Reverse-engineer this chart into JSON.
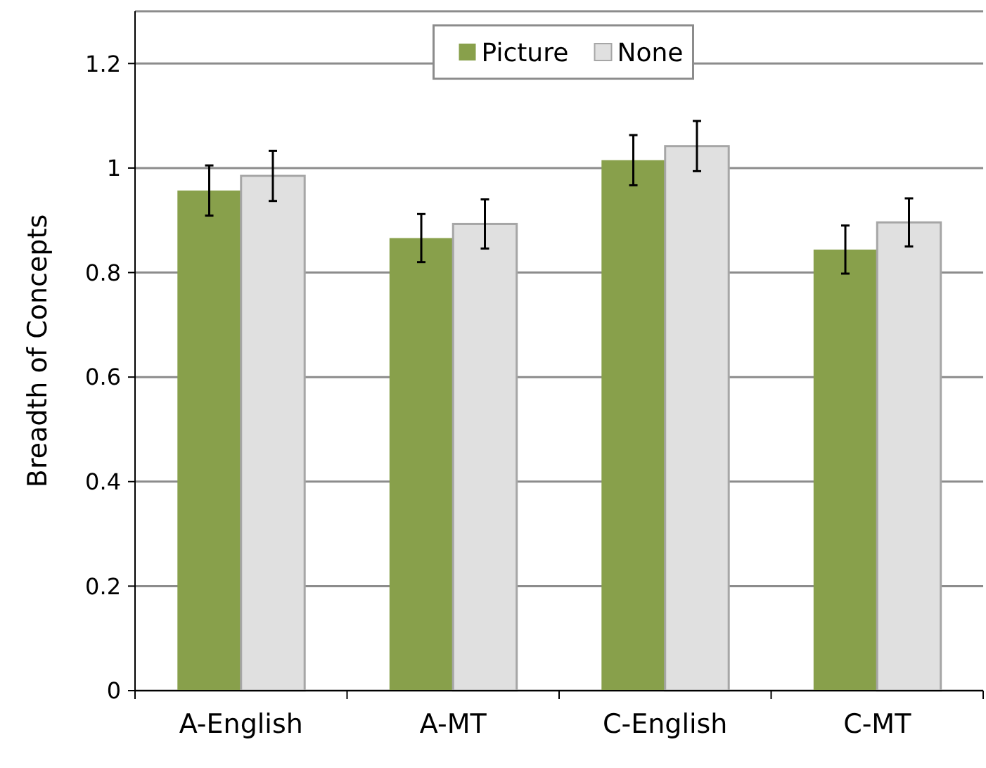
{
  "chart_data": {
    "type": "bar",
    "ylabel": "Breadth of Concepts",
    "categories": [
      "A-English",
      "A-MT",
      "C-English",
      "C-MT"
    ],
    "series": [
      {
        "name": "Picture",
        "color": "#88a04b",
        "values": [
          0.957,
          0.866,
          1.015,
          0.844
        ],
        "errors": [
          0.048,
          0.046,
          0.048,
          0.046
        ]
      },
      {
        "name": "None",
        "color": "#e0e0e0",
        "values": [
          0.985,
          0.893,
          1.042,
          0.896
        ],
        "errors": [
          0.048,
          0.047,
          0.048,
          0.046
        ]
      }
    ],
    "ylim": [
      0,
      1.3
    ],
    "yticks": [
      0,
      0.2,
      0.4,
      0.6,
      0.8,
      1,
      1.2
    ],
    "grid": "y",
    "legend": "top"
  }
}
